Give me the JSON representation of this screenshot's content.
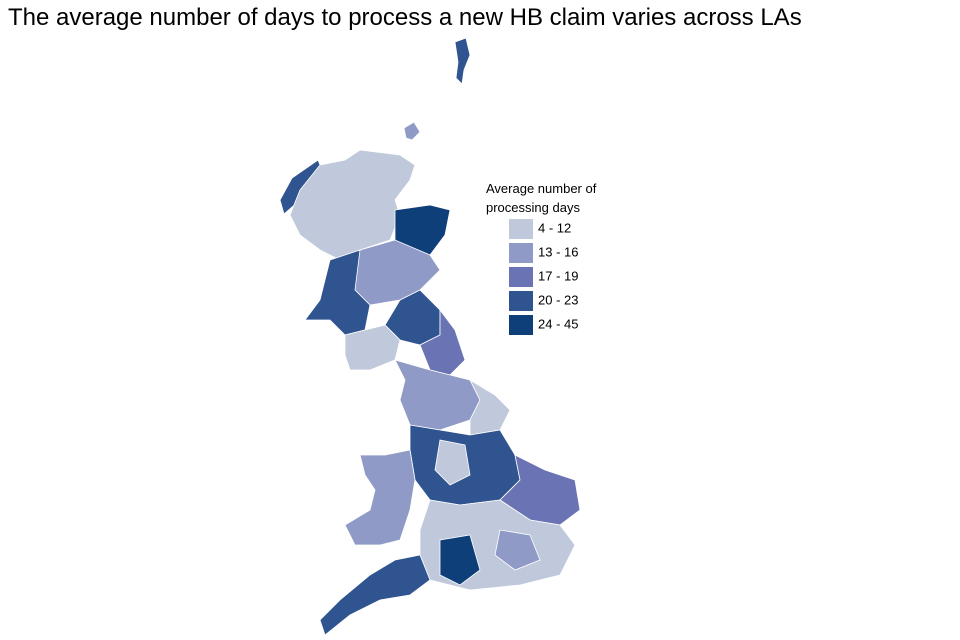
{
  "header": {
    "title": "The average number of days to process a new HB claim varies across LAs"
  },
  "legend": {
    "title": "Average number of processing days",
    "items": [
      {
        "label": "4 - 12",
        "color": "#c0c8dc"
      },
      {
        "label": "13 - 16",
        "color": "#8f9ac7"
      },
      {
        "label": "17 - 19",
        "color": "#6a74b4"
      },
      {
        "label": "20 - 23",
        "color": "#2f5490"
      },
      {
        "label": "24 - 45",
        "color": "#0f3f78"
      }
    ]
  }
}
